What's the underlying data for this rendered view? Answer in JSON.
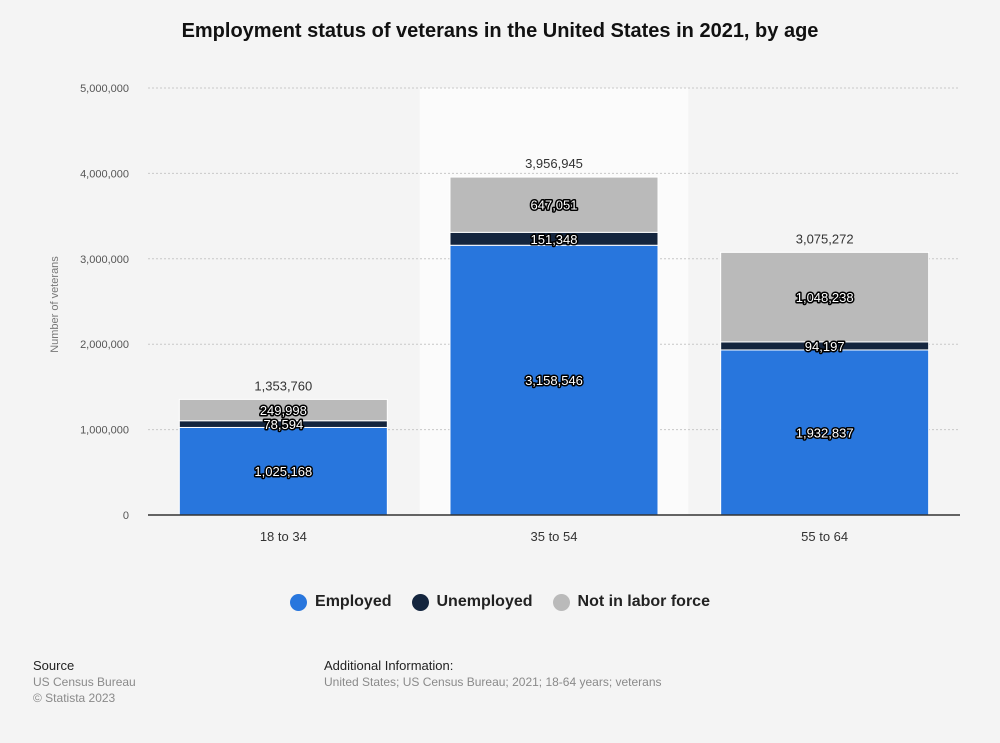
{
  "chart_data": {
    "type": "bar",
    "stacked": true,
    "title": "Employment status of veterans in the United States in 2021, by age",
    "ylabel": "Number of veterans",
    "xlabel": "",
    "categories": [
      "18 to 34",
      "35 to 54",
      "55 to 64"
    ],
    "ylim": [
      0,
      5000000
    ],
    "yticks": [
      0,
      1000000,
      2000000,
      3000000,
      4000000,
      5000000
    ],
    "ytick_labels": [
      "0",
      "1,000,000",
      "2,000,000",
      "3,000,000",
      "4,000,000",
      "5,000,000"
    ],
    "grid": true,
    "legend_position": "bottom",
    "highlighted_category": "35 to 54",
    "series": [
      {
        "name": "Employed",
        "color": "#2876dd",
        "values": [
          1025168,
          3158546,
          1932837
        ],
        "labels": [
          "1,025,168",
          "3,158,546",
          "1,932,837"
        ]
      },
      {
        "name": "Unemployed",
        "color": "#14253e",
        "values": [
          78594,
          151348,
          94197
        ],
        "labels": [
          "78,594",
          "151,348",
          "94,197"
        ]
      },
      {
        "name": "Not in labor force",
        "color": "#bababa",
        "values": [
          249998,
          647051,
          1048238
        ],
        "labels": [
          "249,998",
          "647,051",
          "1,048,238"
        ]
      }
    ],
    "totals": [
      1353760,
      3956945,
      3075272
    ],
    "total_labels": [
      "1,353,760",
      "3,956,945",
      "3,075,272"
    ]
  },
  "legend": [
    "Employed",
    "Unemployed",
    "Not in labor force"
  ],
  "footer": {
    "source_title": "Source",
    "source_name": "US Census Bureau",
    "copyright": "© Statista 2023",
    "info_title": "Additional Information:",
    "info_text": "United States; US Census Bureau; 2021; 18-64 years; veterans"
  }
}
